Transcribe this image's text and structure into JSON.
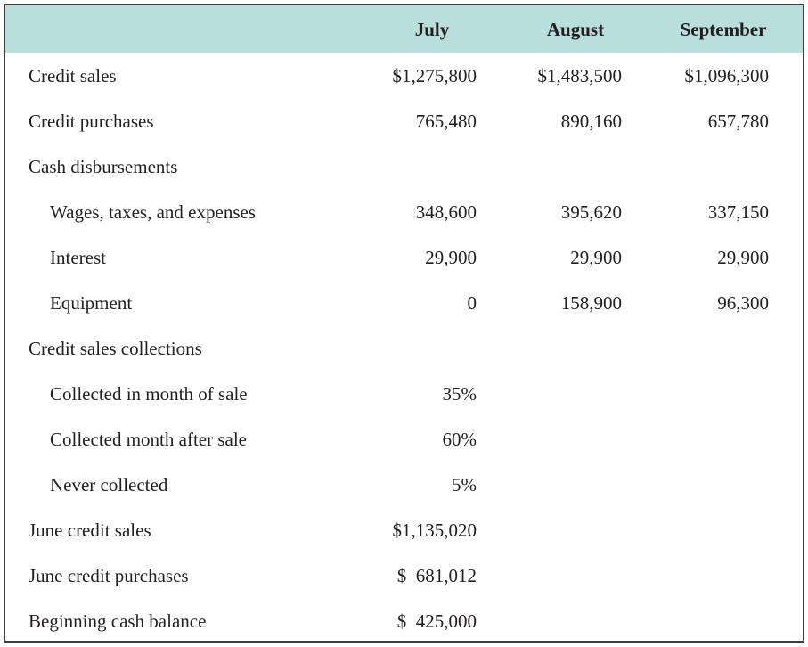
{
  "header": {
    "col1": "July",
    "col2": "August",
    "col3": "September"
  },
  "rows": [
    {
      "label": "Credit sales",
      "july": "$1,275,800",
      "august": "$1,483,500",
      "september": "$1,096,300"
    },
    {
      "label": "Credit purchases",
      "july": "765,480",
      "august": "890,160",
      "september": "657,780"
    },
    {
      "label": "Cash disbursements"
    },
    {
      "label": "Wages, taxes, and expenses",
      "july": "348,600",
      "august": "395,620",
      "september": "337,150"
    },
    {
      "label": "Interest",
      "july": "29,900",
      "august": "29,900",
      "september": "29,900"
    },
    {
      "label": "Equipment",
      "july": "0",
      "august": "158,900",
      "september": "96,300"
    },
    {
      "label": "Credit sales collections"
    },
    {
      "label": "Collected in month of sale",
      "july": "35%"
    },
    {
      "label": "Collected month after sale",
      "july": "60%"
    },
    {
      "label": "Never collected",
      "july": "5%"
    },
    {
      "label": "June credit sales",
      "july": "$1,135,020"
    },
    {
      "label": "June credit purchases",
      "july": "$  681,012"
    },
    {
      "label": "Beginning cash balance",
      "july": "$  425,000"
    }
  ]
}
